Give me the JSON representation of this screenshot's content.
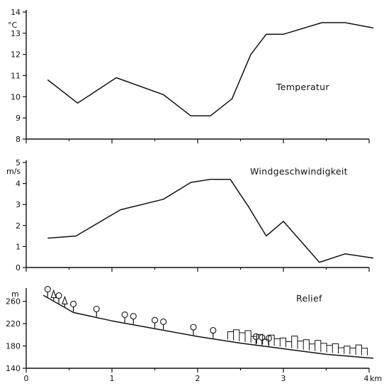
{
  "chart_data": [
    {
      "type": "line",
      "title": "Temperatur",
      "ylabel": "°C",
      "xlabel": "",
      "ylim": [
        8,
        14
      ],
      "xlim": [
        0,
        4
      ],
      "yticks": [
        8,
        9,
        10,
        11,
        12,
        13,
        14
      ],
      "x": [
        0.25,
        0.6,
        1.05,
        1.6,
        1.92,
        2.15,
        2.4,
        2.62,
        2.8,
        3.0,
        3.45,
        3.72,
        4.05
      ],
      "values": [
        10.8,
        9.7,
        10.9,
        10.1,
        9.1,
        9.1,
        9.9,
        12.0,
        12.95,
        12.95,
        13.5,
        13.5,
        13.25
      ]
    },
    {
      "type": "line",
      "title": "Windgeschwindigkeit",
      "ylabel": "m/s",
      "xlabel": "",
      "ylim": [
        0,
        5
      ],
      "xlim": [
        0,
        4
      ],
      "yticks": [
        0,
        1,
        2,
        3,
        4,
        5
      ],
      "x": [
        0.25,
        0.58,
        1.1,
        1.6,
        1.92,
        2.15,
        2.38,
        2.6,
        2.8,
        3.0,
        3.42,
        3.72,
        4.05
      ],
      "values": [
        1.4,
        1.5,
        2.75,
        3.25,
        4.05,
        4.2,
        4.2,
        2.85,
        1.5,
        2.2,
        0.25,
        0.65,
        0.45
      ]
    },
    {
      "type": "area",
      "title": "Relief",
      "ylabel": "m",
      "xlabel": "km",
      "ylim": [
        140,
        280
      ],
      "xlim": [
        0,
        4
      ],
      "yticks": [
        140,
        180,
        220,
        260
      ],
      "xticks": [
        0,
        1,
        2,
        3,
        4
      ],
      "x": [
        0.2,
        0.55,
        1.0,
        1.5,
        2.0,
        2.5,
        3.0,
        3.5,
        4.05
      ],
      "values": [
        271,
        240,
        225,
        211,
        197,
        185,
        175,
        165,
        158
      ],
      "trees": [
        0.25,
        0.38,
        0.55,
        0.82,
        1.15,
        1.25,
        1.5,
        1.6,
        1.95,
        2.18,
        2.68,
        2.75,
        2.83
      ],
      "conifers": [
        0.32,
        0.45
      ],
      "buildings_x": [
        2.35,
        3.98
      ]
    }
  ]
}
